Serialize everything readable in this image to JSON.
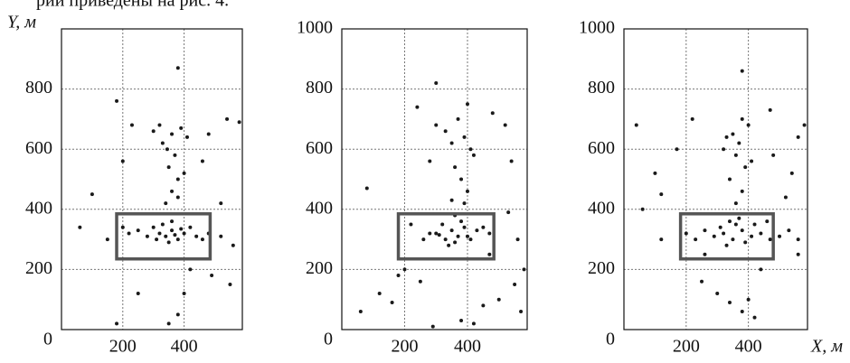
{
  "text_fragment": "рии приведены на рис. 4.",
  "chart_data": [
    {
      "type": "scatter",
      "ylabel": "Y, м",
      "color": "#1a1a1a",
      "grid": true,
      "xlim": [
        0,
        590
      ],
      "ylim": [
        0,
        1000
      ],
      "xticks": [
        200,
        400
      ],
      "yticks": [
        0,
        200,
        400,
        600,
        800
      ],
      "box": {
        "x": [
          180,
          485
        ],
        "y": [
          235,
          385
        ]
      },
      "x": [
        320,
        340,
        360,
        380,
        300,
        350,
        400,
        420,
        280,
        330,
        370,
        390,
        310,
        440,
        250,
        460,
        220,
        200,
        480,
        360,
        340,
        360,
        380,
        350,
        370,
        330,
        360,
        390,
        320,
        410,
        300,
        380,
        400,
        345,
        100,
        180,
        60,
        150,
        520,
        560,
        540,
        580,
        480,
        200,
        250,
        380,
        350,
        400,
        180,
        420,
        490,
        550,
        380,
        460,
        520,
        230
      ],
      "values": [
        320,
        310,
        330,
        300,
        340,
        290,
        320,
        340,
        310,
        350,
        315,
        335,
        300,
        310,
        330,
        300,
        320,
        340,
        320,
        360,
        420,
        460,
        500,
        540,
        580,
        620,
        650,
        670,
        680,
        640,
        660,
        440,
        520,
        600,
        450,
        760,
        340,
        300,
        310,
        280,
        700,
        690,
        650,
        560,
        120,
        50,
        20,
        120,
        20,
        200,
        180,
        150,
        870,
        560,
        420,
        680
      ]
    },
    {
      "type": "scatter",
      "color": "#1a1a1a",
      "grid": true,
      "xlim": [
        0,
        590
      ],
      "ylim": [
        0,
        1000
      ],
      "xticks": [
        200,
        400
      ],
      "yticks": [
        0,
        200,
        400,
        600,
        800,
        1000
      ],
      "box": {
        "x": [
          180,
          484
        ],
        "y": [
          235,
          385
        ]
      },
      "x": [
        300,
        330,
        350,
        370,
        390,
        410,
        320,
        360,
        280,
        430,
        260,
        450,
        340,
        380,
        400,
        310,
        220,
        470,
        360,
        390,
        400,
        380,
        360,
        420,
        350,
        390,
        330,
        370,
        300,
        410,
        350,
        280,
        80,
        60,
        120,
        160,
        200,
        530,
        560,
        580,
        550,
        500,
        520,
        480,
        240,
        300,
        380,
        420,
        450,
        570,
        290,
        180,
        250,
        470,
        540,
        400
      ],
      "values": [
        320,
        300,
        330,
        310,
        340,
        300,
        350,
        290,
        320,
        330,
        300,
        340,
        280,
        360,
        310,
        315,
        350,
        320,
        380,
        420,
        460,
        500,
        540,
        580,
        620,
        640,
        660,
        700,
        680,
        600,
        430,
        560,
        470,
        60,
        120,
        90,
        200,
        390,
        300,
        200,
        150,
        100,
        680,
        720,
        740,
        820,
        30,
        20,
        80,
        60,
        10,
        180,
        160,
        250,
        560,
        750
      ]
    },
    {
      "type": "scatter",
      "xlabel": "X, м",
      "color": "#1a1a1a",
      "grid": true,
      "xlim": [
        0,
        590
      ],
      "ylim": [
        0,
        1000
      ],
      "xticks": [
        200,
        400
      ],
      "yticks": [
        0,
        200,
        400,
        600,
        800,
        1000
      ],
      "box": {
        "x": [
          182,
          480
        ],
        "y": [
          235,
          385
        ]
      },
      "x": [
        200,
        230,
        260,
        290,
        320,
        350,
        380,
        410,
        440,
        470,
        500,
        530,
        560,
        330,
        360,
        390,
        340,
        370,
        310,
        420,
        360,
        380,
        340,
        390,
        360,
        370,
        350,
        330,
        400,
        380,
        320,
        410,
        60,
        40,
        100,
        120,
        170,
        560,
        580,
        520,
        540,
        480,
        250,
        300,
        340,
        380,
        420,
        400,
        440,
        260,
        460,
        380,
        120,
        560,
        220,
        470
      ],
      "values": [
        320,
        300,
        330,
        310,
        320,
        300,
        330,
        310,
        320,
        300,
        310,
        330,
        300,
        280,
        350,
        290,
        360,
        370,
        340,
        350,
        420,
        460,
        500,
        540,
        580,
        620,
        650,
        640,
        680,
        700,
        600,
        560,
        400,
        680,
        520,
        450,
        600,
        640,
        680,
        440,
        520,
        580,
        160,
        120,
        90,
        60,
        40,
        100,
        200,
        250,
        360,
        860,
        300,
        250,
        700,
        730
      ]
    }
  ]
}
